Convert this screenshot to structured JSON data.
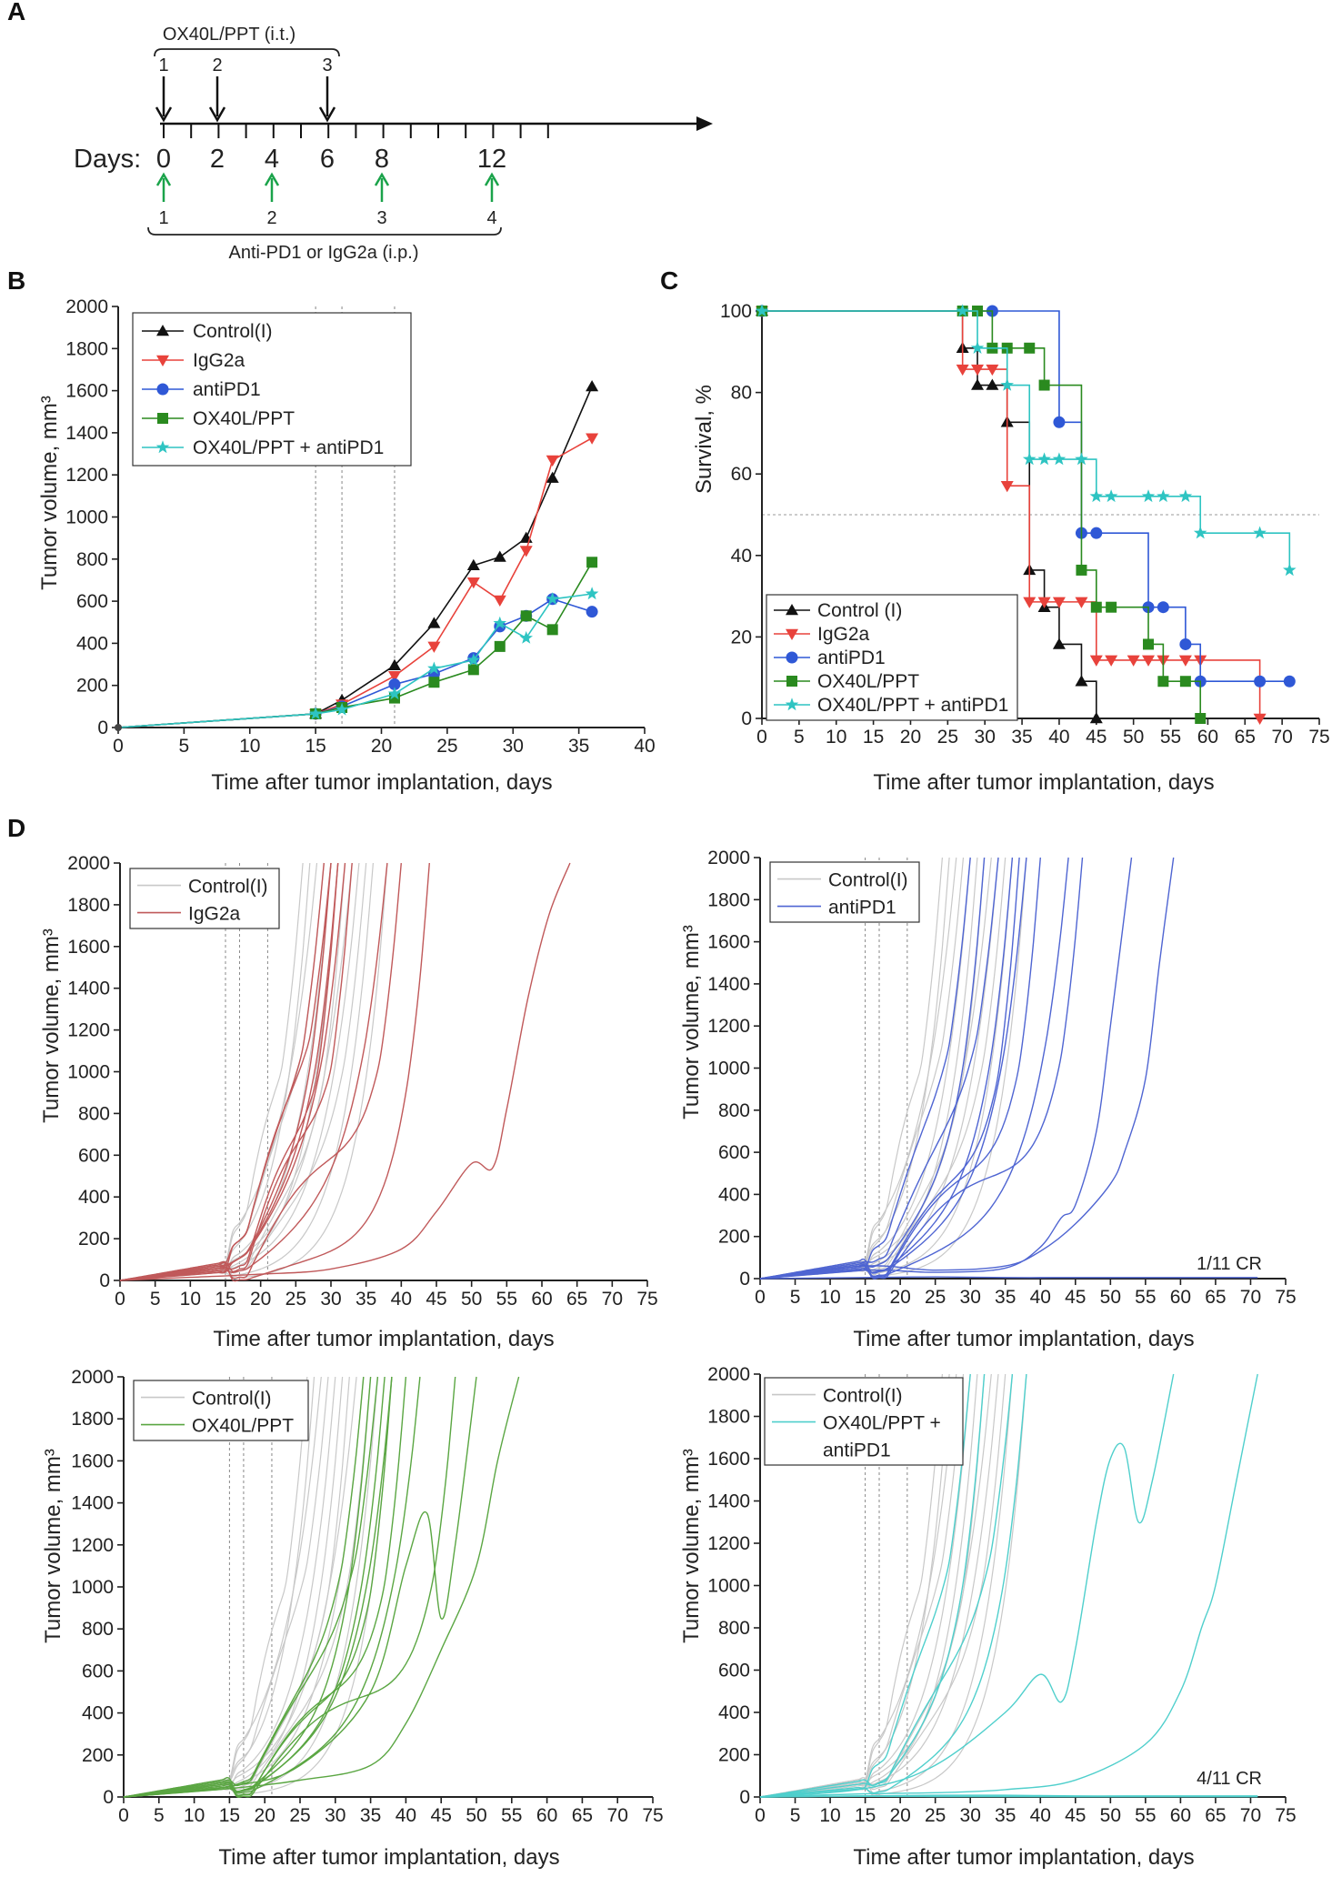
{
  "panelA": {
    "label": "A",
    "top_bracket": "OX40L/PPT (i.t.)",
    "bottom_bracket": "Anti-PD1 or IgG2a (i.p.)",
    "days_label": "Days:",
    "day_ticks": [
      "0",
      "2",
      "4",
      "6",
      "8",
      "12"
    ],
    "top_doses": [
      "1",
      "2",
      "3"
    ],
    "top_dose_days": [
      0,
      2,
      6
    ],
    "bottom_doses": [
      "1",
      "2",
      "3",
      "4"
    ],
    "bottom_dose_days": [
      0,
      4,
      8,
      12
    ]
  },
  "chart_data": [
    {
      "id": "B",
      "type": "line",
      "label": "B",
      "xlabel": "Time after tumor implantation, days",
      "ylabel": "Tumor volume, mm³",
      "xlim": [
        0,
        40
      ],
      "ylim": [
        0,
        2000
      ],
      "xticks": [
        "0",
        "5",
        "10",
        "15",
        "20",
        "25",
        "30",
        "35",
        "40"
      ],
      "yticks": [
        "0",
        "200",
        "400",
        "600",
        "800",
        "1000",
        "1200",
        "1400",
        "1600",
        "1800",
        "2000"
      ],
      "vlines": [
        15,
        17,
        21
      ],
      "legend_position": "top-left",
      "series": [
        {
          "name": "Control(I)",
          "color": "#111111",
          "marker": "tri-up",
          "x": [
            0,
            15,
            17,
            21,
            24,
            27,
            29,
            31,
            33,
            36
          ],
          "values": [
            0,
            65,
            130,
            295,
            495,
            770,
            810,
            900,
            1185,
            1620
          ]
        },
        {
          "name": "IgG2a",
          "color": "#e8423b",
          "marker": "tri-down",
          "x": [
            0,
            15,
            17,
            21,
            24,
            27,
            29,
            31,
            33,
            36
          ],
          "values": [
            0,
            65,
            110,
            245,
            385,
            690,
            605,
            840,
            1270,
            1375
          ]
        },
        {
          "name": "antiPD1",
          "color": "#2f58d6",
          "marker": "circle",
          "x": [
            0,
            15,
            17,
            21,
            24,
            27,
            29,
            31,
            33,
            36
          ],
          "values": [
            0,
            65,
            100,
            205,
            255,
            330,
            480,
            530,
            610,
            550
          ]
        },
        {
          "name": "OX40L/PPT",
          "color": "#2a8a1f",
          "marker": "square",
          "x": [
            0,
            15,
            17,
            21,
            24,
            27,
            29,
            31,
            33,
            36
          ],
          "values": [
            0,
            65,
            95,
            140,
            215,
            275,
            385,
            530,
            465,
            785
          ]
        },
        {
          "name": "OX40L/PPT + antiPD1",
          "color": "#2ec4c2",
          "marker": "star",
          "x": [
            0,
            15,
            17,
            21,
            24,
            27,
            29,
            31,
            33,
            36
          ],
          "values": [
            0,
            65,
            85,
            160,
            280,
            320,
            495,
            425,
            610,
            635
          ]
        }
      ]
    },
    {
      "id": "C",
      "type": "line",
      "label": "C",
      "xlabel": "Time after tumor implantation, days",
      "ylabel": "Survival, %",
      "xlim": [
        0,
        75
      ],
      "ylim": [
        0,
        100
      ],
      "xticks": [
        "0",
        "5",
        "10",
        "15",
        "20",
        "25",
        "30",
        "35",
        "40",
        "45",
        "50",
        "55",
        "60",
        "65",
        "70",
        "75"
      ],
      "yticks": [
        "0",
        "20",
        "40",
        "60",
        "80",
        "100"
      ],
      "hline": 50,
      "legend_position": "bottom-left",
      "series": [
        {
          "name": "Control (I)",
          "color": "#111111",
          "marker": "tri-up",
          "x": [
            0,
            27,
            29,
            31,
            33,
            36,
            38,
            40,
            43,
            45
          ],
          "values": [
            100,
            90.9,
            81.8,
            81.8,
            72.7,
            36.4,
            27.3,
            18.2,
            9.1,
            0
          ]
        },
        {
          "name": "IgG2a",
          "color": "#e8423b",
          "marker": "tri-down",
          "x": [
            0,
            27,
            29,
            31,
            33,
            36,
            38,
            40,
            43,
            45,
            47,
            50,
            52,
            54,
            57,
            59,
            67
          ],
          "values": [
            100,
            85.7,
            85.7,
            85.7,
            57.1,
            28.6,
            28.6,
            28.6,
            28.6,
            14.3,
            14.3,
            14.3,
            14.3,
            14.3,
            14.3,
            14.3,
            0
          ]
        },
        {
          "name": "antiPD1",
          "color": "#2f58d6",
          "marker": "circle",
          "x": [
            0,
            31,
            40,
            43,
            45,
            52,
            54,
            57,
            59,
            67,
            71
          ],
          "values": [
            100,
            100,
            72.7,
            45.5,
            45.5,
            27.3,
            27.3,
            18.2,
            9.1,
            9.1,
            9.1
          ]
        },
        {
          "name": "OX40L/PPT",
          "color": "#2a8a1f",
          "marker": "square",
          "x": [
            0,
            27,
            29,
            31,
            33,
            36,
            38,
            43,
            45,
            47,
            52,
            54,
            57,
            59
          ],
          "values": [
            100,
            100,
            100,
            90.9,
            90.9,
            90.9,
            81.8,
            36.4,
            27.3,
            27.3,
            18.2,
            9.1,
            9.1,
            0
          ]
        },
        {
          "name": "OX40L/PPT + antiPD1",
          "color": "#2ec4c2",
          "marker": "star",
          "x": [
            0,
            27,
            29,
            33,
            36,
            38,
            40,
            43,
            45,
            47,
            52,
            54,
            57,
            59,
            67,
            71
          ],
          "values": [
            100,
            100,
            90.9,
            81.8,
            63.6,
            63.6,
            63.6,
            63.6,
            54.5,
            54.5,
            54.5,
            54.5,
            54.5,
            45.5,
            45.5,
            36.4
          ]
        }
      ]
    },
    {
      "id": "D1",
      "type": "line",
      "label": "D",
      "xlabel": "Time after tumor implantation, days",
      "ylabel": "Tumor volume, mm³",
      "xlim": [
        0,
        75
      ],
      "ylim": [
        0,
        2000
      ],
      "xticks": [
        "0",
        "5",
        "10",
        "15",
        "20",
        "25",
        "30",
        "35",
        "40",
        "45",
        "50",
        "55",
        "60",
        "65",
        "70",
        "75"
      ],
      "yticks": [
        "0",
        "200",
        "400",
        "600",
        "800",
        "1000",
        "1200",
        "1400",
        "1600",
        "1800",
        "2000"
      ],
      "vlines": [
        15,
        17,
        21
      ],
      "legend": [
        "Control(I)",
        "IgG2a"
      ],
      "control_color": "#c8c8c8",
      "treat_color": "#c0595a",
      "control_end_days": [
        26,
        27,
        28,
        29,
        30,
        31,
        32,
        33,
        34,
        35,
        36,
        38
      ],
      "treat_end_days": [
        29,
        30,
        30,
        31,
        31,
        32,
        33,
        38,
        40,
        44
      ],
      "special_curves": [
        {
          "x": [
            0,
            10,
            20,
            30,
            40,
            45,
            50,
            53,
            55,
            58,
            61,
            64
          ],
          "values": [
            0,
            15,
            30,
            55,
            150,
            330,
            560,
            540,
            820,
            1350,
            1750,
            2000
          ]
        }
      ],
      "annotation": ""
    },
    {
      "id": "D2",
      "type": "line",
      "xlabel": "Time after tumor implantation, days",
      "ylabel": "Tumor volume, mm³",
      "xlim": [
        0,
        75
      ],
      "ylim": [
        0,
        2000
      ],
      "xticks": [
        "0",
        "5",
        "10",
        "15",
        "20",
        "25",
        "30",
        "35",
        "40",
        "45",
        "50",
        "55",
        "60",
        "65",
        "70",
        "75"
      ],
      "yticks": [
        "0",
        "200",
        "400",
        "600",
        "800",
        "1000",
        "1200",
        "1400",
        "1600",
        "1800",
        "2000"
      ],
      "vlines": [
        15,
        17,
        21
      ],
      "legend": [
        "Control(I)",
        "antiPD1"
      ],
      "control_color": "#c8c8c8",
      "treat_color": "#4f65d2",
      "control_end_days": [
        26,
        27,
        28,
        29,
        30,
        31,
        32,
        33,
        34,
        35,
        36,
        38
      ],
      "treat_end_days": [
        30,
        32,
        34,
        36,
        37,
        38,
        40,
        44,
        46
      ],
      "special_curves": [
        {
          "x": [
            0,
            15,
            25,
            35,
            40,
            45,
            50,
            52,
            55,
            57,
            59
          ],
          "values": [
            0,
            60,
            40,
            60,
            130,
            260,
            450,
            600,
            950,
            1500,
            2000
          ]
        },
        {
          "x": [
            0,
            15,
            25,
            35,
            40,
            43,
            45,
            48,
            50,
            53
          ],
          "values": [
            0,
            40,
            30,
            50,
            150,
            290,
            350,
            700,
            1200,
            2000
          ]
        },
        {
          "x": [
            0,
            15,
            25,
            35,
            45,
            55,
            65,
            71
          ],
          "values": [
            0,
            5,
            8,
            5,
            5,
            5,
            5,
            5
          ]
        }
      ],
      "annotation": "1/11 CR"
    },
    {
      "id": "D3",
      "type": "line",
      "xlabel": "Time after tumor implantation, days",
      "ylabel": "Tumor volume, mm³",
      "xlim": [
        0,
        75
      ],
      "ylim": [
        0,
        2000
      ],
      "xticks": [
        "0",
        "5",
        "10",
        "15",
        "20",
        "25",
        "30",
        "35",
        "40",
        "45",
        "50",
        "55",
        "60",
        "65",
        "70",
        "75"
      ],
      "yticks": [
        "0",
        "200",
        "400",
        "600",
        "800",
        "1000",
        "1200",
        "1400",
        "1600",
        "1800",
        "2000"
      ],
      "vlines": [
        15,
        17,
        21
      ],
      "legend": [
        "Control(I)",
        "OX40L/PPT"
      ],
      "control_color": "#c8c8c8",
      "treat_color": "#5aa642",
      "control_end_days": [
        26,
        27,
        28,
        29,
        30,
        31,
        32,
        33,
        34,
        35,
        36,
        38
      ],
      "treat_end_days": [
        34,
        35,
        36,
        37,
        38,
        38,
        40,
        42,
        47
      ],
      "special_curves": [
        {
          "x": [
            0,
            15,
            25,
            35,
            40,
            43,
            45,
            47,
            50
          ],
          "values": [
            0,
            50,
            150,
            500,
            1100,
            1350,
            850,
            1200,
            2000
          ]
        },
        {
          "x": [
            0,
            15,
            25,
            35,
            40,
            45,
            50,
            53,
            56
          ],
          "values": [
            0,
            40,
            80,
            150,
            350,
            700,
            1100,
            1600,
            2000
          ]
        }
      ],
      "annotation": ""
    },
    {
      "id": "D4",
      "type": "line",
      "xlabel": "Time after tumor implantation, days",
      "ylabel": "Tumor volume, mm³",
      "xlim": [
        0,
        75
      ],
      "ylim": [
        0,
        2000
      ],
      "xticks": [
        "0",
        "5",
        "10",
        "15",
        "20",
        "25",
        "30",
        "35",
        "40",
        "45",
        "50",
        "55",
        "60",
        "65",
        "70",
        "75"
      ],
      "yticks": [
        "0",
        "200",
        "400",
        "600",
        "800",
        "1000",
        "1200",
        "1400",
        "1600",
        "1800",
        "2000"
      ],
      "vlines": [
        15,
        17,
        21
      ],
      "legend": [
        "Control(I)",
        "OX40L/PPT +",
        "antiPD1"
      ],
      "control_color": "#c8c8c8",
      "treat_color": "#4fcfcc",
      "control_end_days": [
        26,
        27,
        28,
        29,
        30,
        31,
        32,
        33,
        34,
        35,
        36,
        38
      ],
      "treat_end_days": [
        30,
        32,
        36,
        38
      ],
      "special_curves": [
        {
          "x": [
            0,
            15,
            25,
            35,
            40,
            43,
            45,
            48,
            50,
            52,
            54,
            56,
            59
          ],
          "values": [
            0,
            40,
            150,
            400,
            580,
            450,
            700,
            1300,
            1600,
            1650,
            1300,
            1500,
            2000
          ]
        },
        {
          "x": [
            0,
            15,
            25,
            35,
            45,
            55,
            60,
            63,
            65,
            68,
            71
          ],
          "values": [
            0,
            15,
            20,
            35,
            80,
            250,
            500,
            800,
            1000,
            1500,
            2000
          ]
        },
        {
          "x": [
            0,
            15,
            25,
            35,
            45,
            55,
            65,
            71
          ],
          "values": [
            0,
            5,
            8,
            8,
            5,
            5,
            5,
            5
          ]
        },
        {
          "x": [
            0,
            15,
            25,
            35,
            45,
            55,
            65,
            71
          ],
          "values": [
            0,
            5,
            3,
            3,
            2,
            2,
            2,
            2
          ]
        },
        {
          "x": [
            0,
            15,
            25,
            35,
            45,
            55,
            65,
            71
          ],
          "values": [
            0,
            3,
            2,
            2,
            2,
            2,
            2,
            2
          ]
        }
      ],
      "annotation": "4/11 CR"
    }
  ]
}
